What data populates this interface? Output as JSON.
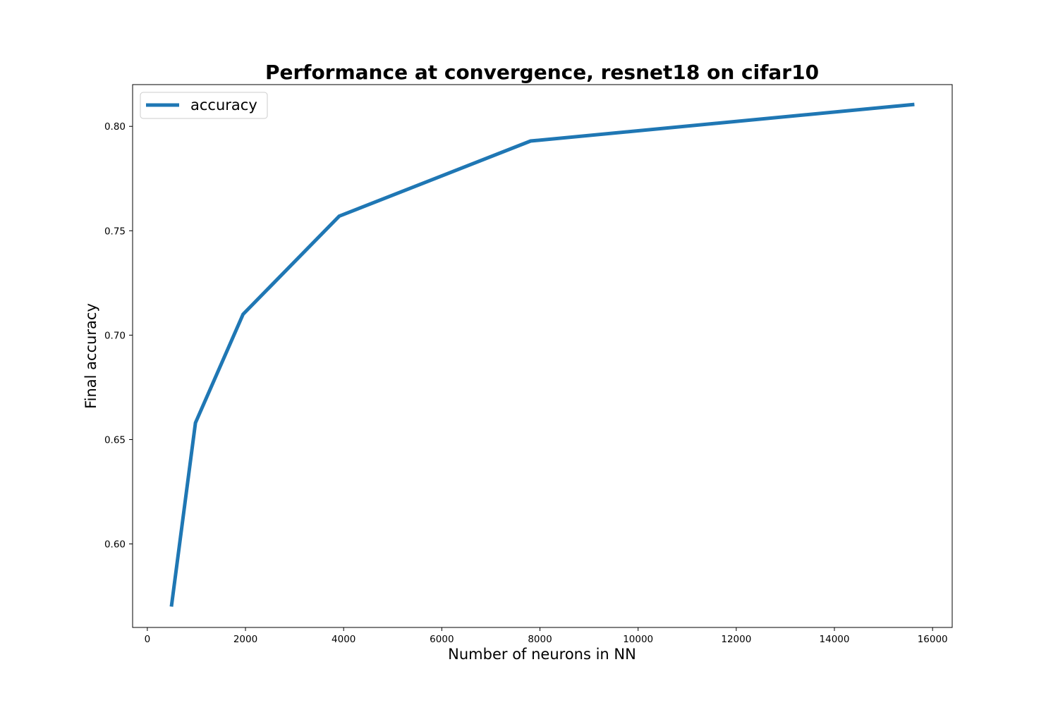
{
  "chart_data": {
    "type": "line",
    "title": "Performance at convergence, resnet18 on cifar10",
    "xlabel": "Number of neurons in NN",
    "ylabel": "Final accuracy",
    "xlim": [
      -300,
      16400
    ],
    "ylim": [
      0.56,
      0.82
    ],
    "xticks": [
      0,
      2000,
      4000,
      6000,
      8000,
      10000,
      12000,
      14000,
      16000
    ],
    "yticks": [
      0.6,
      0.65,
      0.7,
      0.75,
      0.8
    ],
    "grid": false,
    "legend_position": "upper left",
    "series": [
      {
        "name": "accuracy",
        "color": "#1f77b4",
        "x": [
          490,
          980,
          1950,
          3910,
          7810,
          15630
        ],
        "y": [
          0.57,
          0.658,
          0.71,
          0.757,
          0.793,
          0.8105
        ]
      }
    ]
  }
}
